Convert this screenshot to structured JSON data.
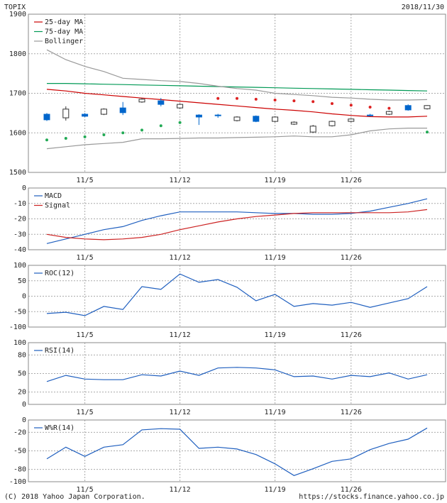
{
  "header": {
    "symbol": "TOPIX",
    "date": "2018/11/30"
  },
  "footer": {
    "copyright": "(C) 2018 Yahoo Japan Corporation.",
    "url": "https://stocks.finance.yahoo.co.jp"
  },
  "chart_data": [
    {
      "type": "candlestick",
      "categories": [
        null,
        null,
        "11/5",
        null,
        null,
        null,
        null,
        "11/12",
        null,
        null,
        null,
        null,
        "11/19",
        null,
        null,
        null,
        "11/26",
        null,
        null,
        null,
        null
      ],
      "open": [
        1647,
        1638,
        1647,
        1647,
        1663,
        1678,
        1681,
        1663,
        1645,
        1645,
        1631,
        1642,
        1629,
        1622,
        1602,
        1618,
        1629,
        1645,
        1647,
        1669,
        1661
      ],
      "high": [
        1650,
        1667,
        1650,
        1662,
        1678,
        1688,
        1688,
        1674,
        1647,
        1648,
        1642,
        1644,
        1642,
        1629,
        1620,
        1631,
        1637,
        1648,
        1656,
        1672,
        1670
      ],
      "low": [
        1630,
        1631,
        1640,
        1645,
        1645,
        1676,
        1667,
        1661,
        1620,
        1638,
        1629,
        1627,
        1627,
        1620,
        1600,
        1616,
        1627,
        1642,
        1645,
        1656,
        1659
      ],
      "close": [
        1633,
        1660,
        1642,
        1660,
        1651,
        1685,
        1672,
        1672,
        1640,
        1644,
        1640,
        1629,
        1640,
        1627,
        1617,
        1629,
        1635,
        1644,
        1654,
        1658,
        1669
      ],
      "up_color": "#ffffff",
      "down_color": "#0066cc",
      "series": [
        {
          "name": "25-day MA",
          "color": "#cc0000",
          "values": [
            1710,
            1706,
            1700,
            1696,
            1692,
            1688,
            1684,
            1680,
            1676,
            1672,
            1668,
            1664,
            1660,
            1657,
            1653,
            1648,
            1644,
            1641,
            1640,
            1640,
            1642
          ]
        },
        {
          "name": "75-day MA",
          "color": "#009955",
          "values": [
            1725,
            1725,
            1724,
            1723,
            1722,
            1721,
            1720,
            1719,
            1718,
            1717,
            1716,
            1715,
            1714,
            1713,
            1712,
            1711,
            1710,
            1709,
            1708,
            1707,
            1706
          ]
        },
        {
          "name": "Bollinger",
          "color": "#999999",
          "values": [
            1810,
            1785,
            1768,
            1755,
            1738,
            1735,
            1732,
            1730,
            1725,
            1718,
            1712,
            1708,
            1700,
            1697,
            1694,
            1690,
            1688,
            1685,
            1683,
            1683,
            1684
          ]
        },
        {
          "color": "#999999",
          "values": [
            1560,
            1565,
            1570,
            1573,
            1576,
            1585,
            1585,
            1586,
            1587,
            1587,
            1588,
            1589,
            1590,
            1592,
            1590,
            1590,
            1595,
            1605,
            1610,
            1612,
            1612
          ]
        }
      ],
      "markers": [
        {
          "color": "#22aa55",
          "values": [
            1582,
            1586,
            1590,
            1595,
            1600,
            1607,
            1618,
            1626,
            null,
            null,
            null,
            null,
            null,
            null,
            null,
            null,
            null,
            null,
            null,
            null,
            1602
          ]
        },
        {
          "color": "#dd2222",
          "values": [
            null,
            null,
            null,
            null,
            null,
            null,
            null,
            null,
            null,
            1687,
            1687,
            1685,
            1683,
            1681,
            1679,
            1674,
            1670,
            1665,
            1662,
            null,
            null
          ]
        }
      ],
      "ylim": [
        1500,
        1900
      ],
      "yticks": [
        1500,
        1600,
        1700,
        1800,
        1900
      ],
      "grid": true
    },
    {
      "type": "line",
      "categories": [
        null,
        null,
        "11/5",
        null,
        null,
        null,
        null,
        "11/12",
        null,
        null,
        null,
        null,
        "11/19",
        null,
        null,
        null,
        "11/26",
        null,
        null,
        null,
        null
      ],
      "series": [
        {
          "name": "MACD",
          "color": "#1f5fbf",
          "values": [
            -36,
            -33,
            -30,
            -27,
            -25,
            -21,
            -18,
            -15.5,
            -15.5,
            -15.5,
            -15.5,
            -16,
            -16.5,
            -16.5,
            -17,
            -17,
            -16.5,
            -15,
            -12.5,
            -10,
            -7
          ]
        },
        {
          "name": "Signal",
          "color": "#cc2222",
          "values": [
            -30,
            -32,
            -33,
            -33.5,
            -33,
            -32,
            -30,
            -27,
            -24.5,
            -22,
            -20,
            -18.5,
            -17.5,
            -16.5,
            -16,
            -16,
            -16,
            -16,
            -16,
            -15.5,
            -14
          ]
        }
      ],
      "ylim": [
        -40,
        0
      ],
      "yticks": [
        -40,
        -30,
        -20,
        -10,
        0
      ],
      "grid": true
    },
    {
      "type": "line",
      "categories": [
        null,
        null,
        "11/5",
        null,
        null,
        null,
        null,
        "11/12",
        null,
        null,
        null,
        null,
        "11/19",
        null,
        null,
        null,
        "11/26",
        null,
        null,
        null,
        null
      ],
      "series": [
        {
          "name": "ROC(12)",
          "color": "#1f5fbf",
          "values": [
            -56,
            -52,
            -63,
            -33,
            -43,
            31,
            22,
            72,
            45,
            54,
            29,
            -15,
            6,
            -33,
            -24,
            -29,
            -20,
            -36,
            -22,
            -8,
            31
          ]
        }
      ],
      "ylim": [
        -100,
        100
      ],
      "yticks": [
        -100,
        -50,
        0,
        50,
        100
      ],
      "grid": true
    },
    {
      "type": "line",
      "categories": [
        null,
        null,
        "11/5",
        null,
        null,
        null,
        null,
        "11/12",
        null,
        null,
        null,
        null,
        "11/19",
        null,
        null,
        null,
        "11/26",
        null,
        null,
        null,
        null
      ],
      "series": [
        {
          "name": "RSI(14)",
          "color": "#1f5fbf",
          "values": [
            37,
            47,
            41,
            40,
            40,
            48,
            46,
            54,
            47,
            59,
            60,
            59,
            56,
            45,
            46,
            41,
            47,
            45,
            51,
            41,
            48
          ]
        }
      ],
      "ylim": [
        0,
        100
      ],
      "yticks": [
        0,
        20,
        50,
        80,
        100
      ],
      "grid": true
    },
    {
      "type": "line",
      "categories": [
        null,
        null,
        "11/5",
        null,
        null,
        null,
        null,
        "11/12",
        null,
        null,
        null,
        null,
        "11/19",
        null,
        null,
        null,
        "11/26",
        null,
        null,
        null,
        null
      ],
      "series": [
        {
          "name": "W%R(14)",
          "color": "#1f5fbf",
          "values": [
            -63,
            -44,
            -59,
            -44,
            -40,
            -16,
            -14,
            -15,
            -46,
            -44,
            -47,
            -56,
            -71,
            -90,
            -79,
            -67,
            -63,
            -48,
            -38,
            -31,
            -13
          ]
        }
      ],
      "ylim": [
        -100,
        0
      ],
      "yticks": [
        -100,
        -80,
        -50,
        -20,
        0
      ],
      "grid": true
    }
  ]
}
